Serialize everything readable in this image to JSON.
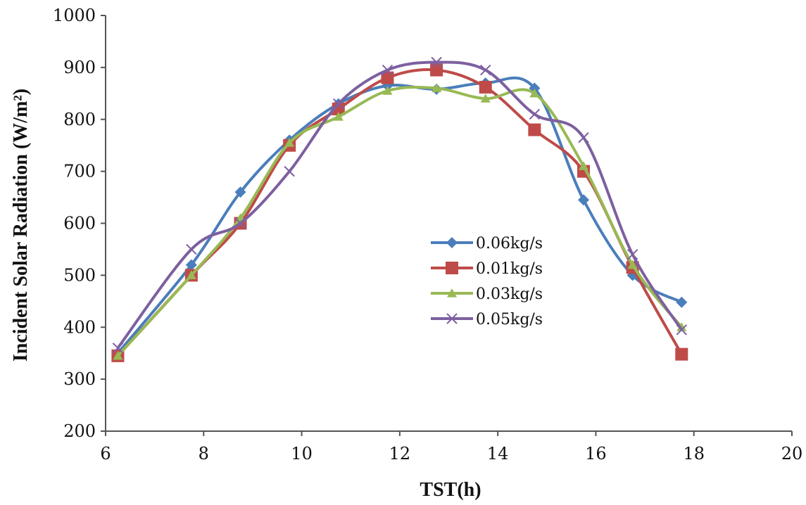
{
  "chart_data": {
    "type": "line",
    "title": "",
    "xlabel": "TST(h)",
    "ylabel": "Incident  Solar Radiation  (W/m²)",
    "xlim": [
      6,
      20
    ],
    "ylim": [
      200,
      1000
    ],
    "xticks": [
      6,
      8,
      10,
      12,
      14,
      16,
      18,
      20
    ],
    "yticks": [
      200,
      300,
      400,
      500,
      600,
      700,
      800,
      900,
      1000
    ],
    "grid": false,
    "legend_position": "center-right",
    "series": [
      {
        "name": "0.06kg/s",
        "color": "#4a7ebb",
        "marker": "diamond",
        "x": [
          6.25,
          7.75,
          8.75,
          9.75,
          10.75,
          11.75,
          12.75,
          13.75,
          14.75,
          15.75,
          16.75,
          17.75
        ],
        "y": [
          350,
          520,
          660,
          760,
          830,
          865,
          858,
          870,
          860,
          645,
          500,
          448
        ]
      },
      {
        "name": "0.01kg/s",
        "color": "#be4b48",
        "marker": "square",
        "x": [
          6.25,
          7.75,
          8.75,
          9.75,
          10.75,
          11.75,
          12.75,
          13.75,
          14.75,
          15.75,
          16.75,
          17.75
        ],
        "y": [
          345,
          500,
          600,
          750,
          820,
          880,
          895,
          862,
          780,
          700,
          515,
          348
        ]
      },
      {
        "name": "0.03kg/s",
        "color": "#98b954",
        "marker": "triangle",
        "x": [
          6.25,
          7.75,
          8.75,
          9.75,
          10.75,
          11.75,
          12.75,
          13.75,
          14.75,
          15.75,
          16.75,
          17.75
        ],
        "y": [
          345,
          500,
          610,
          755,
          805,
          855,
          860,
          840,
          850,
          710,
          520,
          400
        ]
      },
      {
        "name": "0.05kg/s",
        "color": "#7d60a0",
        "marker": "x",
        "x": [
          6.25,
          7.75,
          8.75,
          9.75,
          10.75,
          11.75,
          12.75,
          13.75,
          14.75,
          15.75,
          16.75,
          17.75
        ],
        "y": [
          360,
          550,
          600,
          700,
          830,
          895,
          910,
          895,
          810,
          765,
          540,
          395
        ]
      }
    ]
  }
}
